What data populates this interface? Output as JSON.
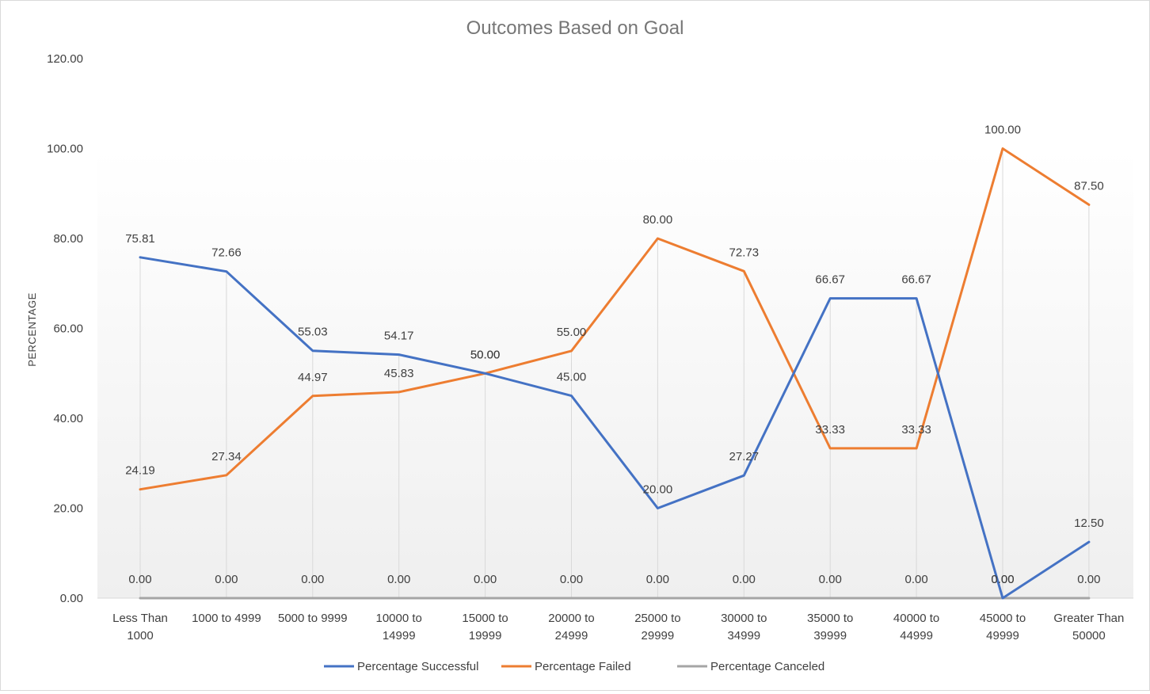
{
  "chart_data": {
    "type": "line",
    "title": "Outcomes Based on Goal",
    "xlabel": "",
    "ylabel": "PERCENTAGE",
    "ylim": [
      0,
      120
    ],
    "yticks": [
      "0.00",
      "20.00",
      "40.00",
      "60.00",
      "80.00",
      "100.00",
      "120.00"
    ],
    "categories": [
      [
        "Less Than",
        "1000"
      ],
      [
        "1000 to 4999"
      ],
      [
        "5000 to 9999"
      ],
      [
        "10000 to",
        "14999"
      ],
      [
        "15000 to",
        "19999"
      ],
      [
        "20000 to",
        "24999"
      ],
      [
        "25000 to",
        "29999"
      ],
      [
        "30000 to",
        "34999"
      ],
      [
        "35000 to",
        "39999"
      ],
      [
        "40000 to",
        "44999"
      ],
      [
        "45000 to",
        "49999"
      ],
      [
        "Greater Than",
        "50000"
      ]
    ],
    "series": [
      {
        "name": "Percentage Successful",
        "color": "#4472C4",
        "values": [
          75.81,
          72.66,
          55.03,
          54.17,
          50.0,
          45.0,
          20.0,
          27.27,
          66.67,
          66.67,
          0.0,
          12.5
        ],
        "labels": [
          "75.81",
          "72.66",
          "55.03",
          "54.17",
          "50.00",
          "45.00",
          "20.00",
          "27.27",
          "66.67",
          "66.67",
          "0.00",
          "12.50"
        ]
      },
      {
        "name": "Percentage Failed",
        "color": "#ED7D31",
        "values": [
          24.19,
          27.34,
          44.97,
          45.83,
          50.0,
          55.0,
          80.0,
          72.73,
          33.33,
          33.33,
          100.0,
          87.5
        ],
        "labels": [
          "24.19",
          "27.34",
          "44.97",
          "45.83",
          "50.00",
          "55.00",
          "80.00",
          "72.73",
          "33.33",
          "33.33",
          "100.00",
          "87.50"
        ]
      },
      {
        "name": "Percentage Canceled",
        "color": "#A5A5A5",
        "values": [
          0,
          0,
          0,
          0,
          0,
          0,
          0,
          0,
          0,
          0,
          0,
          0
        ],
        "labels": [
          "0.00",
          "0.00",
          "0.00",
          "0.00",
          "0.00",
          "0.00",
          "0.00",
          "0.00",
          "0.00",
          "0.00",
          "0.00",
          "0.00"
        ]
      }
    ],
    "grid": "vertical drop lines",
    "legend": "bottom"
  }
}
